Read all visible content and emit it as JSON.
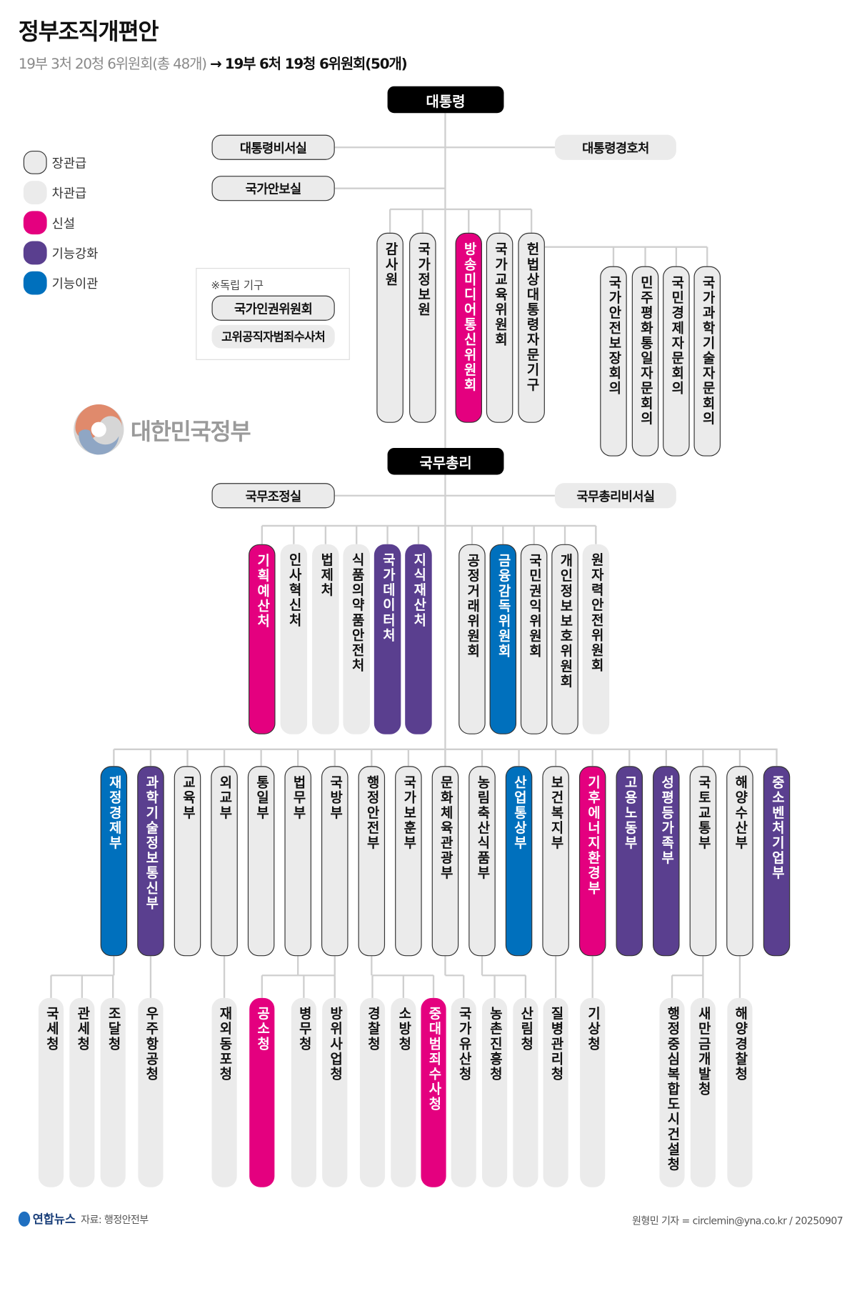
{
  "header": {
    "title": "정부조직개편안",
    "subtitle_before": "19부 3처 20청 6위원회(총 48개)",
    "arrow": "→",
    "subtitle_after": "19부 6처 19청 6위원회(50개)"
  },
  "colors": {
    "new": "#e4007f",
    "enhanced": "#5a3f8f",
    "transferred": "#0070bd",
    "base": "#ebebeb",
    "line": "#cfcfcf"
  },
  "legend": [
    {
      "label": "장관급",
      "style": "bordered"
    },
    {
      "label": "차관급",
      "style": "gray"
    },
    {
      "label": "신설",
      "style": "new"
    },
    {
      "label": "기능강화",
      "style": "enhanced"
    },
    {
      "label": "기능이관",
      "style": "transferred"
    }
  ],
  "president": {
    "label": "대통령",
    "offices": [
      {
        "name": "대통령비서실",
        "rank": "장관급"
      },
      {
        "name": "국가안보실",
        "rank": "장관급"
      },
      {
        "name": "대통령경호처",
        "rank": "차관급"
      }
    ],
    "independent": {
      "title": "※독립 기구",
      "items": [
        {
          "name": "국가인권위원회",
          "rank": "장관급"
        },
        {
          "name": "고위공직자범죄수사처",
          "rank": "차관급"
        }
      ]
    },
    "agencies": [
      {
        "name": "감사원",
        "rank": "장관급",
        "status": ""
      },
      {
        "name": "국가정보원",
        "rank": "장관급",
        "status": ""
      },
      {
        "name": "방송미디어통신위원회",
        "rank": "장관급",
        "status": "신설"
      },
      {
        "name": "국가교육위원회",
        "rank": "장관급",
        "status": ""
      },
      {
        "name": "헌법상대통령자문기구",
        "rank": "장관급",
        "status": ""
      }
    ],
    "advisory": [
      {
        "name": "국가안전보장회의",
        "rank": "장관급",
        "status": ""
      },
      {
        "name": "민주평화통일자문회의",
        "rank": "장관급",
        "status": ""
      },
      {
        "name": "국민경제자문회의",
        "rank": "장관급",
        "status": ""
      },
      {
        "name": "국가과학기술자문회의",
        "rank": "장관급",
        "status": ""
      }
    ]
  },
  "logo": {
    "text": "대한민국정부"
  },
  "prime_minister": {
    "label": "국무총리",
    "offices": [
      {
        "name": "국무조정실",
        "rank": "장관급"
      },
      {
        "name": "국무총리비서실",
        "rank": "차관급"
      }
    ],
    "agencies": [
      {
        "name": "기획예산처",
        "rank": "장관급",
        "status": "신설"
      },
      {
        "name": "인사혁신처",
        "rank": "차관급",
        "status": ""
      },
      {
        "name": "법제처",
        "rank": "차관급",
        "status": ""
      },
      {
        "name": "식품의약품안전처",
        "rank": "차관급",
        "status": ""
      },
      {
        "name": "국가데이터처",
        "rank": "차관급",
        "status": "기능강화"
      },
      {
        "name": "지식재산처",
        "rank": "차관급",
        "status": "기능강화"
      },
      {
        "name": "공정거래위원회",
        "rank": "장관급",
        "status": ""
      },
      {
        "name": "금융감독위원회",
        "rank": "장관급",
        "status": "기능이관"
      },
      {
        "name": "국민권익위원회",
        "rank": "장관급",
        "status": ""
      },
      {
        "name": "개인정보보호위원회",
        "rank": "장관급",
        "status": ""
      },
      {
        "name": "원자력안전위원회",
        "rank": "차관급",
        "status": ""
      }
    ]
  },
  "ministries": [
    {
      "name": "재정경제부",
      "rank": "장관급",
      "status": "기능이관"
    },
    {
      "name": "과학기술정보통신부",
      "rank": "장관급",
      "status": "기능강화"
    },
    {
      "name": "교육부",
      "rank": "장관급",
      "status": ""
    },
    {
      "name": "외교부",
      "rank": "장관급",
      "status": ""
    },
    {
      "name": "통일부",
      "rank": "장관급",
      "status": ""
    },
    {
      "name": "법무부",
      "rank": "장관급",
      "status": ""
    },
    {
      "name": "국방부",
      "rank": "장관급",
      "status": ""
    },
    {
      "name": "행정안전부",
      "rank": "장관급",
      "status": ""
    },
    {
      "name": "국가보훈부",
      "rank": "장관급",
      "status": ""
    },
    {
      "name": "문화체육관광부",
      "rank": "장관급",
      "status": ""
    },
    {
      "name": "농림축산식품부",
      "rank": "장관급",
      "status": ""
    },
    {
      "name": "산업통상부",
      "rank": "장관급",
      "status": "기능이관"
    },
    {
      "name": "보건복지부",
      "rank": "장관급",
      "status": ""
    },
    {
      "name": "기후에너지환경부",
      "rank": "장관급",
      "status": "신설"
    },
    {
      "name": "고용노동부",
      "rank": "장관급",
      "status": "기능강화"
    },
    {
      "name": "성평등가족부",
      "rank": "장관급",
      "status": "기능강화"
    },
    {
      "name": "국토교통부",
      "rank": "장관급",
      "status": ""
    },
    {
      "name": "해양수산부",
      "rank": "장관급",
      "status": ""
    },
    {
      "name": "중소벤처기업부",
      "rank": "장관급",
      "status": "기능강화"
    }
  ],
  "offices_agencies": [
    {
      "name": "국세청",
      "parent": "재정경제부",
      "status": ""
    },
    {
      "name": "관세청",
      "parent": "재정경제부",
      "status": ""
    },
    {
      "name": "조달청",
      "parent": "재정경제부",
      "status": ""
    },
    {
      "name": "우주항공청",
      "parent": "과학기술정보통신부",
      "status": ""
    },
    {
      "name": "재외동포청",
      "parent": "외교부",
      "status": ""
    },
    {
      "name": "공소청",
      "parent": "법무부",
      "status": "신설"
    },
    {
      "name": "병무청",
      "parent": "국방부",
      "status": ""
    },
    {
      "name": "방위사업청",
      "parent": "국방부",
      "status": ""
    },
    {
      "name": "경찰청",
      "parent": "행정안전부",
      "status": ""
    },
    {
      "name": "소방청",
      "parent": "행정안전부",
      "status": ""
    },
    {
      "name": "중대범죄수사청",
      "parent": "행정안전부",
      "status": "신설"
    },
    {
      "name": "국가유산청",
      "parent": "문화체육관광부",
      "status": ""
    },
    {
      "name": "농촌진흥청",
      "parent": "농림축산식품부",
      "status": ""
    },
    {
      "name": "산림청",
      "parent": "농림축산식품부",
      "status": ""
    },
    {
      "name": "질병관리청",
      "parent": "보건복지부",
      "status": ""
    },
    {
      "name": "기상청",
      "parent": "기후에너지환경부",
      "status": ""
    },
    {
      "name": "행정중심복합도시건설청",
      "parent": "국토교통부",
      "status": ""
    },
    {
      "name": "새만금개발청",
      "parent": "국토교통부",
      "status": ""
    },
    {
      "name": "해양경찰청",
      "parent": "해양수산부",
      "status": ""
    }
  ],
  "footer": {
    "brand": "연합뉴스",
    "source": "자료: 행정안전부",
    "credit": "원형민 기자 = circlemin@yna.co.kr / 20250907"
  }
}
